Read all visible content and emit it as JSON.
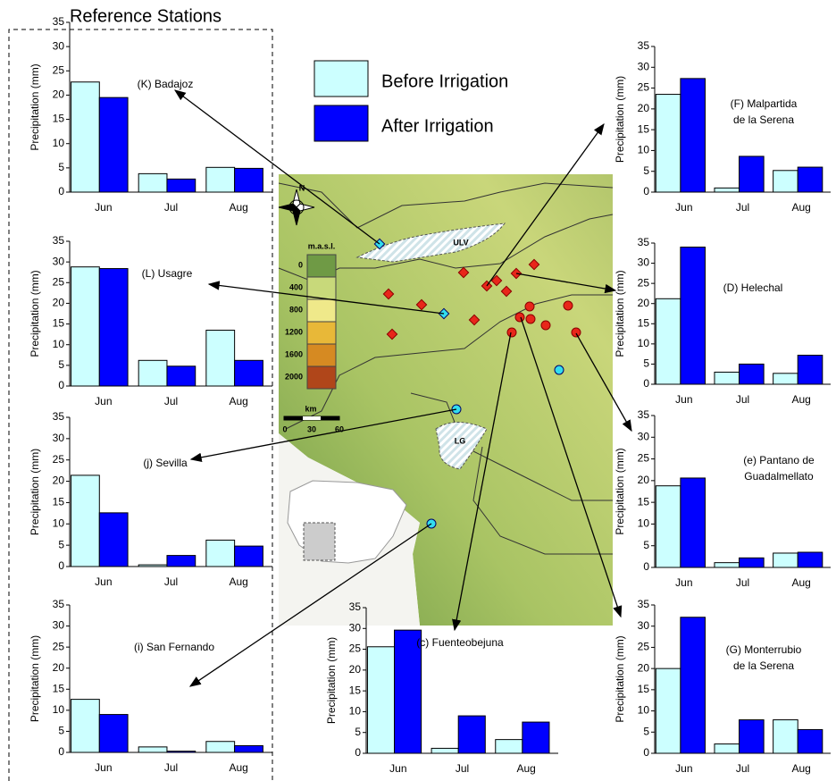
{
  "title": "Reference Stations",
  "legend": [
    {
      "name": "Before Irrigation",
      "color": "#ccffff"
    },
    {
      "name": "After Irrigation",
      "color": "#0000ff"
    }
  ],
  "map": {
    "north": "N",
    "elevation_unit": "m.a.s.l.",
    "elevation_levels": [
      0,
      400,
      800,
      1200,
      1600,
      2000
    ],
    "scale_unit": "km",
    "scale_ticks": [
      0,
      30,
      60
    ],
    "areas": [
      "ULV",
      "LG"
    ]
  },
  "chart_data": [
    {
      "type": "bar",
      "title_lines": [
        "(K) Badajoz"
      ],
      "ylabel": "Precipitation (mm)",
      "categories": [
        "Jun",
        "Jul",
        "Aug"
      ],
      "series": [
        {
          "values": [
            22.7,
            3.8,
            5.1
          ]
        },
        {
          "values": [
            19.5,
            2.7,
            4.9
          ]
        }
      ],
      "ylim": [
        0,
        35
      ],
      "yticks": [
        0,
        5,
        10,
        15,
        20,
        25,
        30,
        35
      ]
    },
    {
      "type": "bar",
      "title_lines": [
        "(L) Usagre"
      ],
      "ylabel": "Precipitation (mm)",
      "categories": [
        "Jun",
        "Jul",
        "Aug"
      ],
      "series": [
        {
          "values": [
            28.8,
            6.2,
            13.5
          ]
        },
        {
          "values": [
            28.4,
            4.8,
            6.2
          ]
        }
      ],
      "ylim": [
        0,
        35
      ],
      "yticks": [
        0,
        5,
        10,
        15,
        20,
        25,
        30,
        35
      ]
    },
    {
      "type": "bar",
      "title_lines": [
        "(j) Sevilla"
      ],
      "ylabel": "Precipitation (mm)",
      "categories": [
        "Jun",
        "Jul",
        "Aug"
      ],
      "series": [
        {
          "values": [
            21.4,
            0.4,
            6.2
          ]
        },
        {
          "values": [
            12.6,
            2.6,
            4.8
          ]
        }
      ],
      "ylim": [
        0,
        35
      ],
      "yticks": [
        0,
        5,
        10,
        15,
        20,
        25,
        30,
        35
      ]
    },
    {
      "type": "bar",
      "title_lines": [
        "(i) San Fernando"
      ],
      "ylabel": "Precipitation (mm)",
      "categories": [
        "Jun",
        "Jul",
        "Aug"
      ],
      "series": [
        {
          "values": [
            12.6,
            1.3,
            2.6
          ]
        },
        {
          "values": [
            9.0,
            0.3,
            1.6
          ]
        }
      ],
      "ylim": [
        0,
        35
      ],
      "yticks": [
        0,
        5,
        10,
        15,
        20,
        25,
        30,
        35
      ]
    },
    {
      "type": "bar",
      "title_lines": [
        "(c) Fuenteobejuna"
      ],
      "ylabel": "Precipitation (mm)",
      "categories": [
        "Jun",
        "Jul",
        "Aug"
      ],
      "series": [
        {
          "values": [
            25.6,
            1.2,
            3.3
          ]
        },
        {
          "values": [
            29.6,
            9.0,
            7.5
          ]
        }
      ],
      "ylim": [
        0,
        35
      ],
      "yticks": [
        0,
        5,
        10,
        15,
        20,
        25,
        30,
        35
      ]
    },
    {
      "type": "bar",
      "title_lines": [
        "(F) Malpartida",
        "de la Serena"
      ],
      "ylabel": "Precipitation (mm)",
      "categories": [
        "Jun",
        "Jul",
        "Aug"
      ],
      "series": [
        {
          "values": [
            23.5,
            1.0,
            5.2
          ]
        },
        {
          "values": [
            27.3,
            8.6,
            6.0
          ]
        }
      ],
      "ylim": [
        0,
        35
      ],
      "yticks": [
        0,
        5,
        10,
        15,
        20,
        25,
        30,
        35
      ]
    },
    {
      "type": "bar",
      "title_lines": [
        "(D) Helechal"
      ],
      "ylabel": "Precipitation (mm)",
      "categories": [
        "Jun",
        "Jul",
        "Aug"
      ],
      "series": [
        {
          "values": [
            21.2,
            3.0,
            2.7
          ]
        },
        {
          "values": [
            34.0,
            5.0,
            7.2
          ]
        }
      ],
      "ylim": [
        0,
        35
      ],
      "yticks": [
        0,
        5,
        10,
        15,
        20,
        25,
        30,
        35
      ]
    },
    {
      "type": "bar",
      "title_lines": [
        "(e) Pantano de",
        "Guadalmellato"
      ],
      "ylabel": "Precipitation (mm)",
      "categories": [
        "Jun",
        "Jul",
        "Aug"
      ],
      "series": [
        {
          "values": [
            18.8,
            1.1,
            3.3
          ]
        },
        {
          "values": [
            20.6,
            2.2,
            3.5
          ]
        }
      ],
      "ylim": [
        0,
        35
      ],
      "yticks": [
        0,
        5,
        10,
        15,
        20,
        25,
        30,
        35
      ]
    },
    {
      "type": "bar",
      "title_lines": [
        "(G) Monterrubio",
        "de la Serena"
      ],
      "ylabel": "Precipitation (mm)",
      "categories": [
        "Jun",
        "Jul",
        "Aug"
      ],
      "series": [
        {
          "values": [
            20.0,
            2.2,
            7.9
          ]
        },
        {
          "values": [
            32.1,
            7.9,
            5.6
          ]
        }
      ],
      "ylim": [
        0,
        35
      ],
      "yticks": [
        0,
        5,
        10,
        15,
        20,
        25,
        30,
        35
      ]
    }
  ]
}
